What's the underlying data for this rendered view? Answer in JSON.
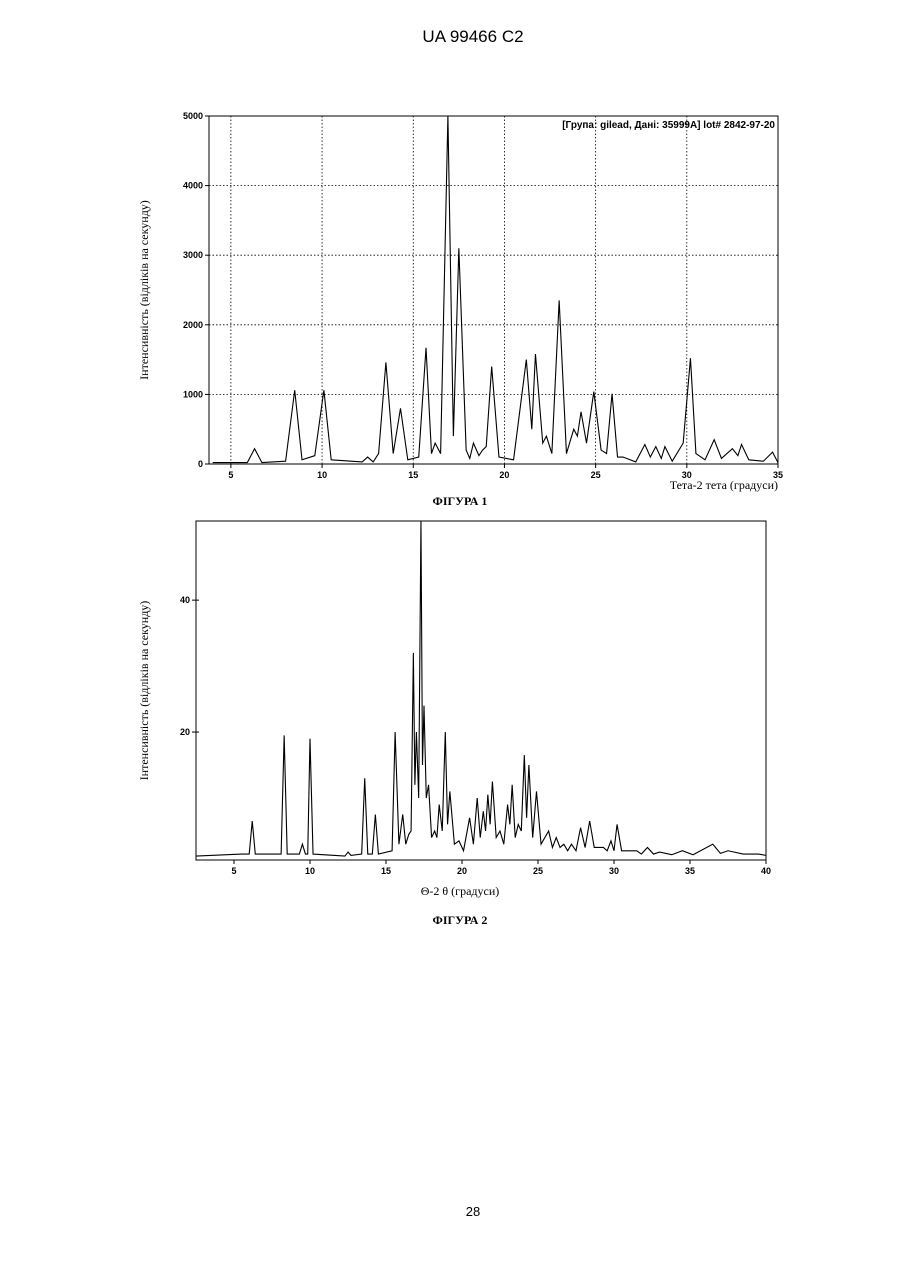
{
  "header": "UA 99466 C2",
  "page_number": "28",
  "chart_data": [
    {
      "type": "line",
      "annotation": "[Група: gilead, Дані: 35999A] lot# 2842-97-20",
      "x_label": "Тета-2 тета (градуси)",
      "y_label": "Інтенсивність (відліків на секунду)",
      "caption": "ФІГУРА 1",
      "xlim": [
        3.8,
        35
      ],
      "ylim": [
        0,
        5000
      ],
      "xticks": [
        5,
        10,
        15,
        20,
        25,
        30,
        35
      ],
      "yticks": [
        0,
        1000,
        2000,
        3000,
        4000,
        5000
      ],
      "grid": true,
      "series": [
        {
          "color": "#000000",
          "x": [
            4,
            5.9,
            6.3,
            6.7,
            8.0,
            8.5,
            8.9,
            9.6,
            10.1,
            10.5,
            12.2,
            12.5,
            12.8,
            13.1,
            13.5,
            13.9,
            14.3,
            14.7,
            15.3,
            15.7,
            16.0,
            16.2,
            16.5,
            16.9,
            17.2,
            17.5,
            17.9,
            18.1,
            18.3,
            18.6,
            18.8,
            19.0,
            19.3,
            19.7,
            20.5,
            21.2,
            21.5,
            21.7,
            22.1,
            22.3,
            22.6,
            23.0,
            23.4,
            23.8,
            24.0,
            24.2,
            24.5,
            24.9,
            25.3,
            25.6,
            25.9,
            26.2,
            26.5,
            27.2,
            27.7,
            28.0,
            28.3,
            28.6,
            28.8,
            29.2,
            29.8,
            30.2,
            30.5,
            31.0,
            31.5,
            31.9,
            32.5,
            32.8,
            33.0,
            33.4,
            34.2,
            34.7,
            35
          ],
          "values": [
            20,
            20,
            220,
            20,
            40,
            1060,
            60,
            120,
            1060,
            60,
            30,
            100,
            30,
            150,
            1460,
            150,
            800,
            60,
            100,
            1670,
            150,
            300,
            150,
            5000,
            400,
            3100,
            200,
            80,
            300,
            120,
            200,
            250,
            1400,
            100,
            60,
            1500,
            500,
            1580,
            300,
            400,
            150,
            2350,
            150,
            500,
            400,
            750,
            300,
            1040,
            200,
            150,
            1010,
            100,
            100,
            30,
            280,
            100,
            250,
            80,
            250,
            40,
            300,
            1520,
            150,
            60,
            350,
            80,
            220,
            120,
            280,
            60,
            40,
            170,
            20
          ]
        }
      ]
    },
    {
      "type": "line",
      "x_label": "Θ-2 θ (градуси)",
      "y_label": "Інтенсивність (відліків на секунду)",
      "caption": "ФІГУРА 2",
      "xlim": [
        2.5,
        40
      ],
      "ylim": [
        0.6,
        52
      ],
      "xticks": [
        5,
        10,
        15,
        20,
        25,
        30,
        35,
        40
      ],
      "yticks": [
        20,
        40
      ],
      "grid": false,
      "series": [
        {
          "color": "#000000",
          "x": [
            2.5,
            5.5,
            6.0,
            6.2,
            6.4,
            8.1,
            8.3,
            8.5,
            9.3,
            9.5,
            9.7,
            9.85,
            10.0,
            10.2,
            12.3,
            12.5,
            12.7,
            13.4,
            13.6,
            13.8,
            14.1,
            14.3,
            14.5,
            15.4,
            15.6,
            15.85,
            16.1,
            16.3,
            16.5,
            16.65,
            16.8,
            16.9,
            17.0,
            17.15,
            17.3,
            17.4,
            17.5,
            17.65,
            17.8,
            18.0,
            18.2,
            18.35,
            18.5,
            18.7,
            18.9,
            19.05,
            19.2,
            19.5,
            19.8,
            20.1,
            20.5,
            20.75,
            21.0,
            21.2,
            21.4,
            21.55,
            21.7,
            21.85,
            22.0,
            22.25,
            22.5,
            22.75,
            23.0,
            23.15,
            23.3,
            23.5,
            23.7,
            23.9,
            24.1,
            24.25,
            24.4,
            24.65,
            24.9,
            25.2,
            25.7,
            25.95,
            26.2,
            26.45,
            26.7,
            26.95,
            27.2,
            27.5,
            27.8,
            28.1,
            28.4,
            28.7,
            29.3,
            29.55,
            29.8,
            30.0,
            30.2,
            30.5,
            31.5,
            31.8,
            32.2,
            32.6,
            33,
            33.8,
            34.5,
            35.2,
            36.5,
            37,
            37.5,
            38.5,
            39.5,
            40
          ],
          "values": [
            1.2,
            1.5,
            1.5,
            6.5,
            1.5,
            1.5,
            19.5,
            1.5,
            1.5,
            3,
            1.5,
            1.5,
            19,
            1.5,
            1.2,
            1.8,
            1.3,
            1.5,
            13,
            1.5,
            1.5,
            7.5,
            1.5,
            2,
            20,
            3,
            7.5,
            3,
            4.5,
            5,
            32,
            12,
            20,
            10,
            52,
            15,
            24,
            10,
            12,
            4,
            5,
            4,
            9,
            5,
            20,
            6,
            11,
            3,
            3.5,
            2,
            7,
            3,
            10,
            4,
            8,
            5,
            10.5,
            6,
            12.5,
            4,
            5,
            3,
            9,
            6,
            12,
            4,
            6,
            5,
            16.5,
            7,
            15,
            4,
            11,
            3,
            5,
            2.5,
            4,
            2.5,
            3,
            2,
            3,
            2,
            5.5,
            2.5,
            6.5,
            2.5,
            2.5,
            2,
            3.5,
            2,
            6,
            2,
            2,
            1.5,
            2.5,
            1.5,
            1.8,
            1.4,
            2,
            1.4,
            3,
            1.6,
            2,
            1.5,
            1.5,
            1.3
          ]
        }
      ]
    }
  ]
}
